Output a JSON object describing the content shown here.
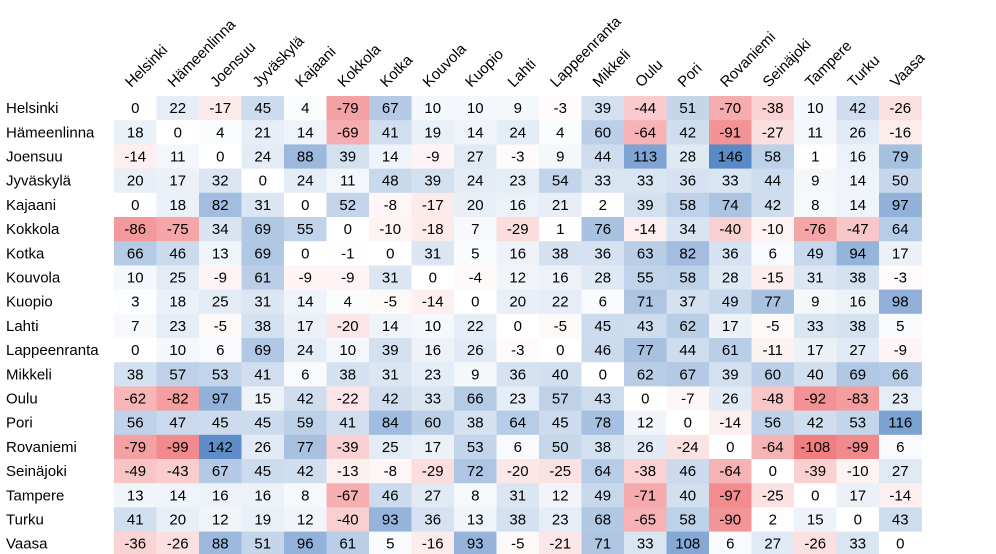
{
  "chart_data": {
    "type": "heatmap",
    "title": "",
    "xlabel": "",
    "ylabel": "",
    "columns": [
      "Helsinki",
      "Hämeenlinna",
      "Joensuu",
      "Jyväskylä",
      "Kajaani",
      "Kokkola",
      "Kotka",
      "Kouvola",
      "Kuopio",
      "Lahti",
      "Lappeenranta",
      "Mikkeli",
      "Oulu",
      "Pori",
      "Rovaniemi",
      "Seinäjoki",
      "Tampere",
      "Turku",
      "Vaasa"
    ],
    "rows": [
      "Helsinki",
      "Hämeenlinna",
      "Joensuu",
      "Jyväskylä",
      "Kajaani",
      "Kokkola",
      "Kotka",
      "Kouvola",
      "Kuopio",
      "Lahti",
      "Lappeenranta",
      "Mikkeli",
      "Oulu",
      "Pori",
      "Rovaniemi",
      "Seinäjoki",
      "Tampere",
      "Turku",
      "Vaasa"
    ],
    "values": [
      [
        0,
        22,
        -17,
        45,
        4,
        -79,
        67,
        10,
        10,
        9,
        -3,
        39,
        -44,
        51,
        -70,
        -38,
        10,
        42,
        -26
      ],
      [
        18,
        0,
        4,
        21,
        14,
        -69,
        41,
        19,
        14,
        24,
        4,
        60,
        -64,
        42,
        -91,
        -27,
        11,
        26,
        -16
      ],
      [
        -14,
        11,
        0,
        24,
        88,
        39,
        14,
        -9,
        27,
        -3,
        9,
        44,
        113,
        28,
        146,
        58,
        1,
        16,
        79
      ],
      [
        20,
        17,
        32,
        0,
        24,
        11,
        48,
        39,
        24,
        23,
        54,
        33,
        33,
        36,
        33,
        44,
        9,
        14,
        50
      ],
      [
        0,
        18,
        82,
        31,
        0,
        52,
        -8,
        -17,
        20,
        16,
        21,
        2,
        39,
        58,
        74,
        42,
        8,
        14,
        97
      ],
      [
        -86,
        -75,
        34,
        69,
        55,
        0,
        -10,
        -18,
        7,
        -29,
        1,
        76,
        -14,
        34,
        -40,
        -10,
        -76,
        -47,
        64
      ],
      [
        66,
        46,
        13,
        69,
        0,
        -1,
        0,
        31,
        5,
        16,
        38,
        36,
        63,
        82,
        36,
        6,
        49,
        94,
        17
      ],
      [
        10,
        25,
        -9,
        61,
        -9,
        -9,
        31,
        0,
        -4,
        12,
        16,
        28,
        55,
        58,
        28,
        -15,
        31,
        38,
        -3
      ],
      [
        3,
        18,
        25,
        31,
        14,
        4,
        -5,
        -14,
        0,
        20,
        22,
        6,
        71,
        37,
        49,
        77,
        9,
        16,
        98
      ],
      [
        7,
        23,
        -5,
        38,
        17,
        -20,
        14,
        10,
        22,
        0,
        -5,
        45,
        43,
        62,
        17,
        -5,
        33,
        38,
        5
      ],
      [
        0,
        10,
        6,
        69,
        24,
        10,
        39,
        16,
        26,
        -3,
        0,
        46,
        77,
        44,
        61,
        -11,
        17,
        27,
        -9
      ],
      [
        38,
        57,
        53,
        41,
        6,
        38,
        31,
        23,
        9,
        36,
        40,
        0,
        62,
        67,
        39,
        60,
        40,
        69,
        66
      ],
      [
        -62,
        -82,
        97,
        15,
        42,
        -22,
        42,
        33,
        66,
        23,
        57,
        43,
        0,
        -7,
        26,
        -48,
        -92,
        -83,
        23
      ],
      [
        56,
        47,
        45,
        45,
        59,
        41,
        84,
        60,
        38,
        64,
        45,
        78,
        12,
        0,
        -14,
        56,
        42,
        53,
        116
      ],
      [
        -79,
        -99,
        142,
        26,
        77,
        -39,
        25,
        17,
        53,
        6,
        50,
        38,
        26,
        -24,
        0,
        -64,
        -108,
        -99,
        6
      ],
      [
        -49,
        -43,
        67,
        45,
        42,
        -13,
        -8,
        -29,
        72,
        -20,
        -25,
        64,
        -38,
        46,
        -64,
        0,
        -39,
        -10,
        27
      ],
      [
        13,
        14,
        16,
        16,
        8,
        -67,
        46,
        27,
        8,
        31,
        12,
        49,
        -71,
        40,
        -97,
        -25,
        0,
        17,
        -14
      ],
      [
        41,
        20,
        12,
        19,
        12,
        -40,
        93,
        36,
        13,
        38,
        23,
        68,
        -65,
        58,
        -90,
        2,
        15,
        0,
        43
      ],
      [
        -36,
        -26,
        88,
        51,
        96,
        61,
        5,
        -16,
        93,
        -5,
        -21,
        71,
        33,
        108,
        6,
        27,
        -26,
        33,
        0
      ]
    ],
    "color_scale": {
      "negative": "#f07f82",
      "zero": "#ffffff",
      "positive": "#5a8ac6",
      "min": -108,
      "max": 146
    },
    "grid": false,
    "legend": "none"
  }
}
